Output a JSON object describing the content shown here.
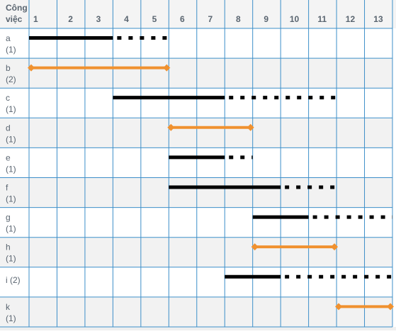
{
  "header": {
    "task_label_line1": "Công",
    "task_label_line2": "việc"
  },
  "chart_data": {
    "type": "gantt",
    "days": [
      "1",
      "2",
      "3",
      "4",
      "5",
      "6",
      "7",
      "8",
      "9",
      "10",
      "11",
      "12",
      "13"
    ],
    "colors": {
      "grid": "#3d8fc9",
      "header_bg": "#f4f4f4",
      "row_alt_bg": "#f2f2f2",
      "label": "#5a6570",
      "normal_task": "#000000",
      "critical_task": "#f0912f"
    },
    "tasks": [
      {
        "name": "a",
        "duration": "(1)",
        "start": 1,
        "end": 4,
        "slack_end": 6,
        "critical": false
      },
      {
        "name": "b",
        "duration": "(2)",
        "start": 1,
        "end": 6,
        "critical": true
      },
      {
        "name": "c",
        "duration": "(1)",
        "start": 4,
        "end": 8,
        "slack_end": 12,
        "critical": false
      },
      {
        "name": "d",
        "duration": "(1)",
        "start": 6,
        "end": 9,
        "critical": true
      },
      {
        "name": "e",
        "duration": "(1)",
        "start": 6,
        "end": 8,
        "slack_end": 9,
        "critical": false
      },
      {
        "name": "f",
        "duration": "(1)",
        "start": 6,
        "end": 10,
        "slack_end": 12,
        "critical": false
      },
      {
        "name": "g",
        "duration": "(1)",
        "start": 9,
        "end": 11,
        "slack_end": 14,
        "critical": false
      },
      {
        "name": "h",
        "duration": "(1)",
        "start": 9,
        "end": 12,
        "critical": true
      },
      {
        "name": "i (2)",
        "duration": "",
        "start": 8,
        "end": 10,
        "slack_end": 14,
        "critical": false
      },
      {
        "name": "k",
        "duration": "(1)",
        "start": 12,
        "end": 14,
        "critical": true
      }
    ]
  }
}
